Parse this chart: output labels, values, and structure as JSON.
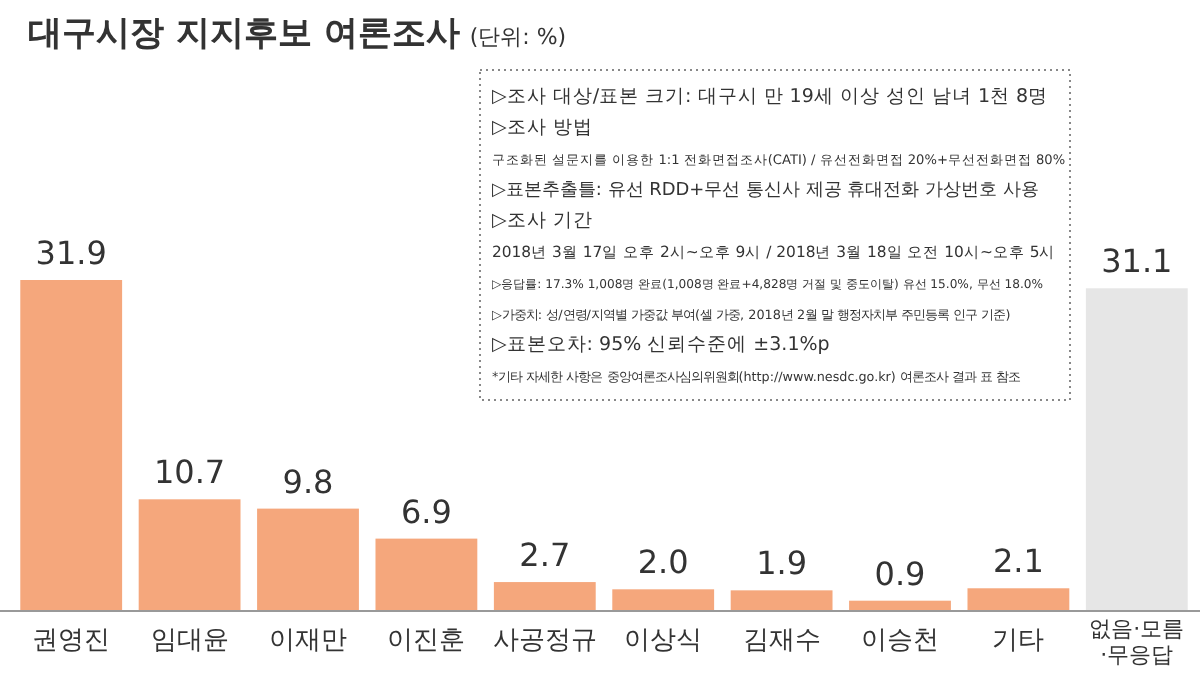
{
  "chart_data": {
    "type": "bar",
    "title": "대구시장 지지후보 여론조사",
    "subtitle": "(단위: %)",
    "categories": [
      "권영진",
      "임대윤",
      "이재만",
      "이진훈",
      "사공정규",
      "이상식",
      "김재수",
      "이승천",
      "기타",
      "없음·모름\n·무응답"
    ],
    "values": [
      31.9,
      10.7,
      9.8,
      6.9,
      2.7,
      2.0,
      1.9,
      0.9,
      2.1,
      31.1
    ],
    "colors": [
      "#f5a77c",
      "#f5a77c",
      "#f5a77c",
      "#f5a77c",
      "#f5a77c",
      "#f5a77c",
      "#f5a77c",
      "#f5a77c",
      "#f5a77c",
      "#e6e6e6"
    ],
    "value_labels": [
      "31.9",
      "10.7",
      "9.8",
      "6.9",
      "2.7",
      "2.0",
      "1.9",
      "0.9",
      "2.1",
      "31.1"
    ],
    "annotations": [
      "▷조사 대상/표본 크기: 대구시 만 19세 이상 성인 남녀 1천 8명",
      "▷조사 방법",
      "구조화된 설문지를 이용한 1:1 전화면접조사(CATI) / 유선전화면접 20%+무선전화면접 80%",
      "▷표본추출틀: 유선 RDD+무선 통신사 제공 휴대전화 가상번호 사용",
      "▷조사 기간",
      "2018년 3월 17일 오후 2시~오후 9시 / 2018년 3월 18일 오전 10시~오후 5시",
      "▷응답률: 17.3% 1,008명 완료(1,008명 완료+4,828명 거절 및 중도이탈) 유선 15.0%, 무선 18.0%",
      "▷가중치: 성/연령/지역별 가중값 부여(셀 가중, 2018년 2월 말 행정자치부 주민등록 인구 기준)",
      "▷표본오차: 95% 신뢰수준에 ±3.1%p",
      "*기타 자세한 사항은 중앙여론조사심의위원회(http://www.nesdc.go.kr) 여론조사 결과 표 참조"
    ]
  }
}
